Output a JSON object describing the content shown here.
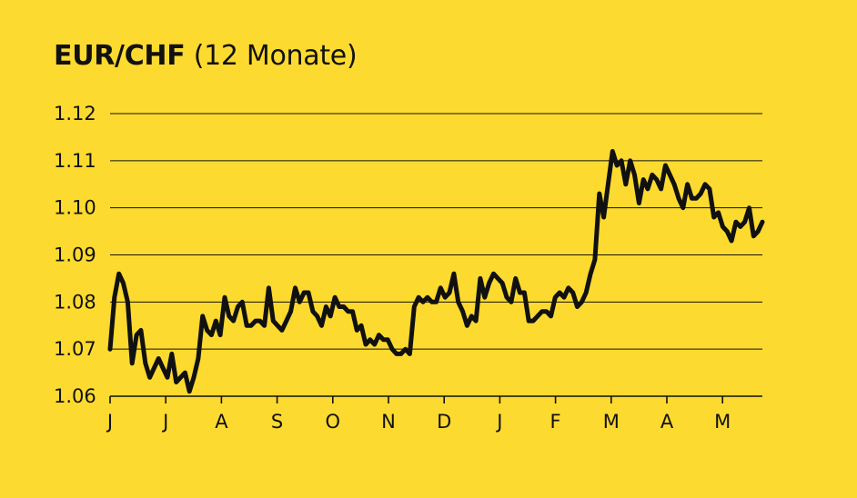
{
  "chart_data": {
    "type": "line",
    "title": "EUR/CHF",
    "subtitle": "(12 Monate)",
    "xlabel": "",
    "ylabel": "",
    "ylim": [
      1.06,
      1.12
    ],
    "y_ticks": [
      "1.12",
      "1.11",
      "1.10",
      "1.09",
      "1.08",
      "1.07",
      "1.06"
    ],
    "y_tick_values": [
      1.12,
      1.11,
      1.1,
      1.09,
      1.08,
      1.07,
      1.06
    ],
    "x_ticks": [
      "J",
      "J",
      "A",
      "S",
      "O",
      "N",
      "D",
      "J",
      "F",
      "M",
      "A",
      "M"
    ],
    "grid": "horizontal",
    "colors": {
      "background": "#FDDA2F",
      "line": "#111111",
      "grid": "#111111"
    },
    "series": [
      {
        "values": [
          1.07,
          1.081,
          1.086,
          1.084,
          1.08,
          1.067,
          1.073,
          1.074,
          1.067,
          1.064,
          1.066,
          1.068,
          1.066,
          1.064,
          1.069,
          1.063,
          1.064,
          1.065,
          1.061,
          1.064,
          1.068,
          1.077,
          1.074,
          1.073,
          1.076,
          1.073,
          1.081,
          1.077,
          1.076,
          1.079,
          1.08,
          1.075,
          1.075,
          1.076,
          1.076,
          1.075,
          1.083,
          1.076,
          1.075,
          1.074,
          1.076,
          1.078,
          1.083,
          1.08,
          1.082,
          1.082,
          1.078,
          1.077,
          1.075,
          1.079,
          1.077,
          1.081,
          1.079,
          1.079,
          1.078,
          1.078,
          1.074,
          1.075,
          1.071,
          1.072,
          1.071,
          1.073,
          1.072,
          1.072,
          1.07,
          1.069,
          1.069,
          1.07,
          1.069,
          1.079,
          1.081,
          1.08,
          1.081,
          1.08,
          1.08,
          1.083,
          1.081,
          1.082,
          1.086,
          1.08,
          1.078,
          1.075,
          1.077,
          1.076,
          1.085,
          1.081,
          1.084,
          1.086,
          1.085,
          1.084,
          1.081,
          1.08,
          1.085,
          1.082,
          1.082,
          1.076,
          1.076,
          1.077,
          1.078,
          1.078,
          1.077,
          1.081,
          1.082,
          1.081,
          1.083,
          1.082,
          1.079,
          1.08,
          1.082,
          1.086,
          1.089,
          1.103,
          1.098,
          1.105,
          1.112,
          1.109,
          1.11,
          1.105,
          1.11,
          1.107,
          1.101,
          1.106,
          1.104,
          1.107,
          1.106,
          1.104,
          1.109,
          1.107,
          1.105,
          1.102,
          1.1,
          1.105,
          1.102,
          1.102,
          1.103,
          1.105,
          1.104,
          1.098,
          1.099,
          1.096,
          1.095,
          1.093,
          1.097,
          1.096,
          1.097,
          1.1,
          1.094,
          1.095,
          1.097
        ]
      }
    ]
  }
}
